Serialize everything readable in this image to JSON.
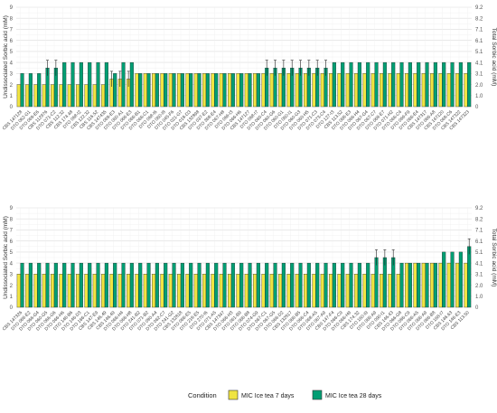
{
  "legend": {
    "title": "Condition",
    "items": [
      {
        "label": "MIC Ice tea 7 days",
        "color": "#f0e442"
      },
      {
        "label": "MIC Ice tea 28 days",
        "color": "#009e73"
      }
    ]
  },
  "chart_data": [
    {
      "type": "bar",
      "ylabel": "Undissociated Sorbic acid (mM)",
      "y2label": "Total Sorbic acid (mM)",
      "ylim": [
        0,
        9
      ],
      "yticks": [
        "0",
        "1",
        "2",
        "3",
        "4",
        "5",
        "6",
        "7",
        "8",
        "9"
      ],
      "y2ticks": [
        "0",
        "1.0",
        "2.0",
        "3.1",
        "4.1",
        "5.1",
        "6.1",
        "7.1",
        "8.2",
        "9.2"
      ],
      "grid": true,
      "categories": [
        "CBS 147128",
        "DTO 062-G1",
        "DTO 069-E6",
        "CBS 112976",
        "DTO 071-C2",
        "CBS 112.32",
        "CBS 174.48",
        "DTO 068-I2",
        "CBS 122.32",
        "CBS 116.52",
        "CBS 147435",
        "DTO 069-E3",
        "DTO 060-A1",
        "DTO 066-E3",
        "DTO 066-B1",
        "DTO 066-C1",
        "DTO 068-I6",
        "DTO 060-I8",
        "DTO 045-F6",
        "DTO 021-G7",
        "DTO 018-D3",
        "CBS 132898",
        "DTO 037-E2",
        "DTO 368-E4",
        "DTO 067-H8",
        "DTO 066-I3",
        "DTO 066-H6",
        "CBS 147127",
        "DTO 068-I7",
        "DTO 060-C4",
        "DTO 060-G6",
        "DTO 060-G1",
        "DTO 060-I1",
        "DTO 060-G3",
        "DTO 060-H5",
        "DTO 071-C3",
        "DTO 073-C4",
        "DTO 127-I3",
        "CBS 113.52",
        "DTO 068-E3",
        "DTO 066-H4",
        "DTO 067-G4",
        "DTO 067-C7",
        "DTO 068-E7",
        "DTO 071-H2",
        "DTO 066-C4",
        "DTO 066-F9",
        "DTO 066-E4",
        "CBS 147317",
        "DTO 066-A8",
        "CBS 147120",
        "DTO 068-C6",
        "CBS 147322",
        "CBS 147323"
      ],
      "series": [
        {
          "name": "MIC Ice tea 7 days",
          "values": [
            2,
            2,
            2,
            2,
            2,
            2,
            2,
            2,
            2,
            2,
            2,
            2.5,
            2.5,
            2.5,
            3,
            3,
            3,
            3,
            3,
            3,
            3,
            3,
            3,
            3,
            3,
            3,
            3,
            3,
            3,
            3,
            3,
            3,
            3,
            3,
            3,
            3,
            3,
            3,
            3,
            3,
            3,
            3,
            3,
            3,
            3,
            3,
            3,
            3,
            3,
            3,
            3,
            3,
            3,
            3
          ]
        },
        {
          "name": "MIC Ice tea 28 days",
          "values": [
            3,
            3,
            3,
            3.5,
            3.5,
            4,
            4,
            4,
            4,
            4,
            4,
            3,
            4,
            4,
            3,
            3,
            3,
            3,
            3,
            3,
            3,
            3,
            3,
            3,
            3,
            3,
            3,
            3,
            3,
            3.5,
            3.5,
            3.5,
            3.5,
            3.5,
            3.5,
            3.5,
            3.5,
            4,
            4,
            4,
            4,
            4,
            4,
            4,
            4,
            4,
            4,
            4,
            4,
            4,
            4,
            4,
            4,
            4
          ]
        }
      ]
    },
    {
      "type": "bar",
      "ylabel": "Undissociated Sorbic acid (mM)",
      "y2label": "Total Sorbic acid (mM)",
      "ylim": [
        0,
        9
      ],
      "yticks": [
        "0",
        "1",
        "2",
        "3",
        "4",
        "5",
        "6",
        "7",
        "8",
        "9"
      ],
      "y2ticks": [
        "0",
        "1.0",
        "2.0",
        "3.1",
        "4.1",
        "5.1",
        "6.1",
        "7.1",
        "8.2",
        "9.2"
      ],
      "grid": true,
      "categories": [
        "CBS 147326",
        "DTO 066-E2",
        "DTO 066-G4",
        "DTO 060-G5",
        "DTO 066-G6",
        "DTO 066-H6",
        "DTO 146-B6",
        "DTO 146-D3",
        "DTO 166-C1",
        "CBS 147-E9",
        "CBS 146.49",
        "CBS 146.49",
        "DTO 066-H4",
        "DTO 066-H8",
        "DTO 241-B2",
        "DTO 071-B2",
        "DTO 090-A4",
        "DTO 062-C7",
        "DTO 241-G2",
        "CBS 132818",
        "DTO 066-E5",
        "DTO 218-E5",
        "DTO 270-I6",
        "DTO 071-A5",
        "CBS 147347",
        "DTO 066-H3",
        "DTO 061-B9",
        "DTO 066-B8",
        "DTO 074-G9",
        "DTO 067-C1",
        "DTO 067-G5",
        "DTO 066-D2",
        "CBS 132817",
        "DTO 066-B5",
        "DTO 066-C4",
        "DTO 068-A5",
        "DTO 067-A9",
        "CBS 147-F4",
        "DTO 066-C9",
        "DTO 066-H9",
        "CBS 174.32",
        "DTO 160-I9",
        "DTO 066-A9",
        "DTO 090-I1",
        "CBS 146.43",
        "DTO 066-G8",
        "DTO 086-C9",
        "DTO 066-A5",
        "DTO 066-A9",
        "DTO 066-B8",
        "DTO 168-I7",
        "CBS 146.63",
        "DTO 146-E3",
        "CBS 113.50"
      ],
      "series": [
        {
          "name": "MIC Ice tea 7 days",
          "values": [
            3,
            3,
            3,
            3,
            3,
            3,
            3,
            3,
            3,
            3,
            3,
            3,
            3,
            3,
            3,
            3,
            3,
            3,
            3,
            3,
            3,
            3,
            3,
            3,
            3,
            3,
            3,
            3,
            3,
            3,
            3,
            3,
            3,
            3,
            3,
            3,
            3,
            3,
            3,
            3,
            3,
            3,
            3,
            3,
            3,
            3,
            4,
            4,
            4,
            4,
            4,
            4,
            4,
            4
          ]
        },
        {
          "name": "MIC Ice tea 28 days",
          "values": [
            4,
            4,
            4,
            4,
            4,
            4,
            4,
            4,
            4,
            4,
            4,
            4,
            4,
            4,
            4,
            4,
            4,
            4,
            4,
            4,
            4,
            4,
            4,
            4,
            4,
            4,
            4,
            4,
            4,
            4,
            4,
            4,
            4,
            4,
            4,
            4,
            4,
            4,
            4,
            4,
            4,
            4,
            4.5,
            4.5,
            4.5,
            4,
            4,
            4,
            4,
            4,
            5,
            5,
            5,
            5.5
          ]
        }
      ]
    }
  ]
}
